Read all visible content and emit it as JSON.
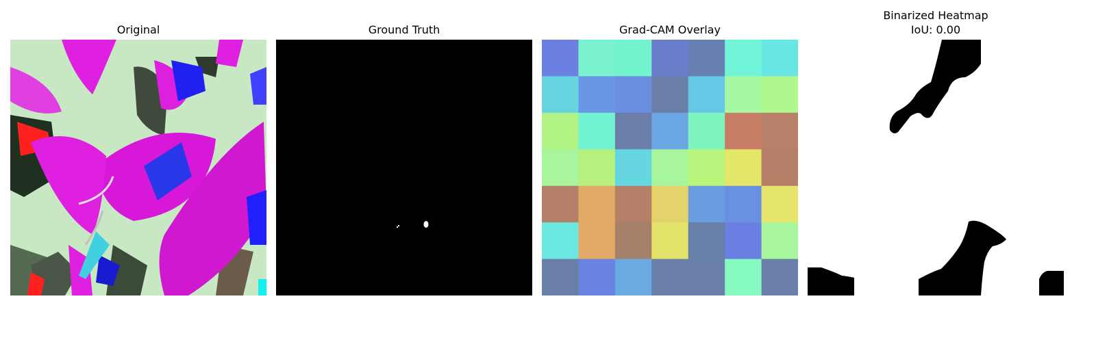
{
  "panels": [
    {
      "title": "Original"
    },
    {
      "title": "Ground Truth"
    },
    {
      "title": "Grad-CAM Overlay"
    },
    {
      "title": "Binarized Heatmap",
      "subtitle": "IoU: 0.00"
    }
  ],
  "gradcam": {
    "rows": 7,
    "cols": 7,
    "colors": [
      [
        "#6a7fe0",
        "#7af2d0",
        "#74f3cf",
        "#6a7ecb",
        "#687fb3",
        "#72f4d8",
        "#68e6e4"
      ],
      [
        "#66d5e0",
        "#6a97e5",
        "#6a8fe0",
        "#6a7fa8",
        "#66c8e4",
        "#a6f8a2",
        "#aff88e"
      ],
      [
        "#b1f285",
        "#72f4d2",
        "#6a7ea8",
        "#6aa6e3",
        "#7ef5bf",
        "#c87e66",
        "#b88068"
      ],
      [
        "#a9f59d",
        "#b6f17e",
        "#66d6e0",
        "#a7f69c",
        "#b8f57c",
        "#e3e667",
        "#b68068"
      ],
      [
        "#b57e68",
        "#e0aa66",
        "#b67f68",
        "#e4d36a",
        "#6a9ce0",
        "#6a90e2",
        "#e4e56a"
      ],
      [
        "#6ae8e0",
        "#e2aa66",
        "#a6816a",
        "#e4e46a",
        "#687fa8",
        "#6a7fe2",
        "#a8f79e"
      ],
      [
        "#6a7fa8",
        "#6a82e0",
        "#6aaae3",
        "#6a80a8",
        "#6a7fa8",
        "#86f9c0",
        "#6a80a8"
      ]
    ]
  }
}
